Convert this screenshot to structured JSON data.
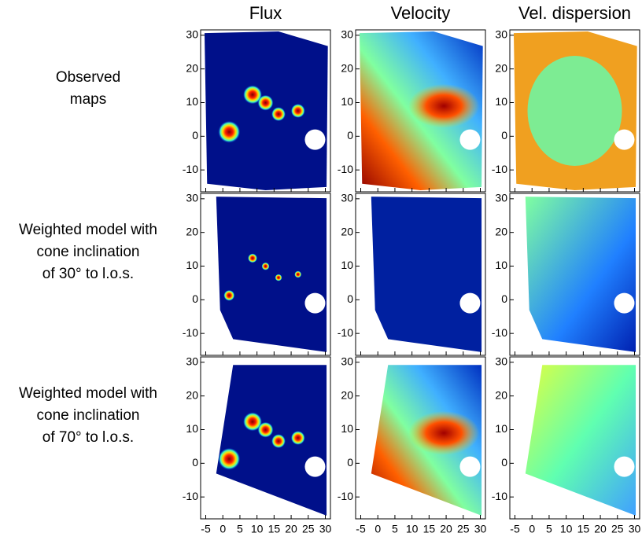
{
  "columns": [
    "Flux",
    "Velocity",
    "Vel. dispersion"
  ],
  "rows": [
    {
      "lines": [
        "Observed",
        "maps"
      ]
    },
    {
      "lines": [
        "Weighted model with",
        "cone inclination",
        "of 30° to l.o.s."
      ]
    },
    {
      "lines": [
        "Weighted model with",
        "cone inclination",
        "of 70° to l.o.s."
      ]
    }
  ],
  "xlim": [
    -6.5,
    31.5
  ],
  "xticks": [
    -5,
    0,
    5,
    10,
    15,
    20,
    25,
    30
  ],
  "ylim": [
    -16.5,
    31.6
  ],
  "yticks": [
    -10,
    0,
    10,
    20,
    30
  ]
}
